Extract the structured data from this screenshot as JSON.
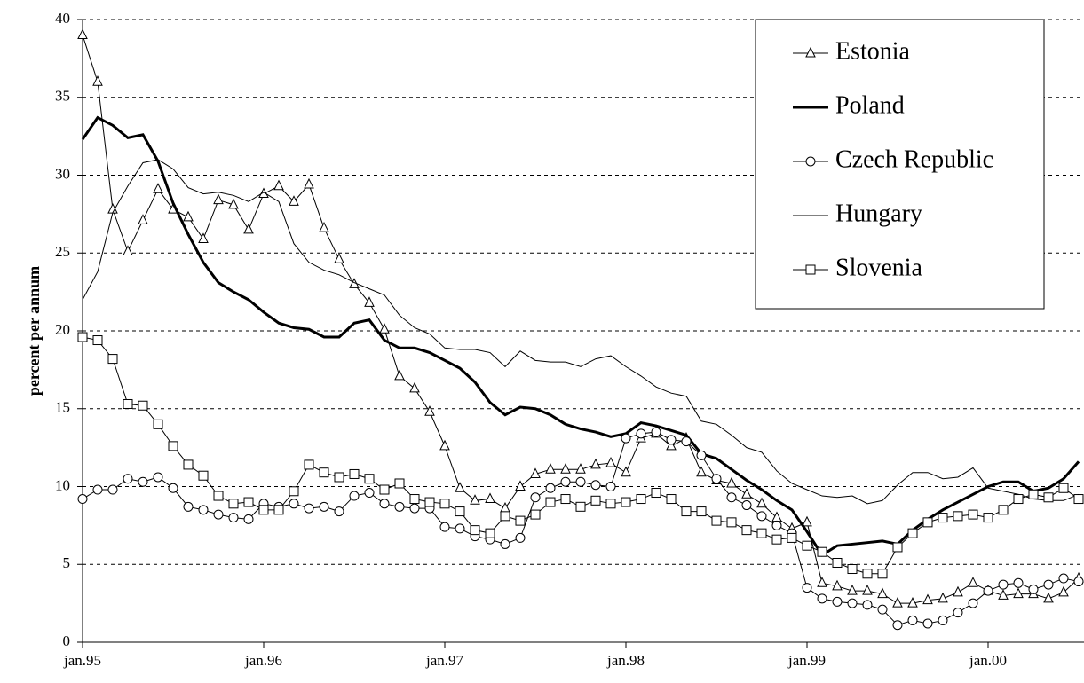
{
  "chart_data": {
    "type": "line",
    "y_label": "percent per annum",
    "categories": [
      "jan.95",
      null,
      null,
      null,
      null,
      null,
      null,
      null,
      null,
      null,
      null,
      null,
      "jan.96",
      null,
      null,
      null,
      null,
      null,
      null,
      null,
      null,
      null,
      null,
      null,
      "jan.97",
      null,
      null,
      null,
      null,
      null,
      null,
      null,
      null,
      null,
      null,
      null,
      "jan.98",
      null,
      null,
      null,
      null,
      null,
      null,
      null,
      null,
      null,
      null,
      null,
      "jan.99",
      null,
      null,
      null,
      null,
      null,
      null,
      null,
      null,
      null,
      null,
      null,
      "jan.00",
      null,
      null,
      null,
      null,
      null,
      null
    ],
    "ylim": [
      0,
      40
    ],
    "yticks": [
      0,
      5,
      10,
      15,
      20,
      25,
      30,
      35,
      40
    ],
    "grid": true,
    "legend": "top-right",
    "series": [
      {
        "name": "Estonia",
        "color": "#000000",
        "marker": "triangle",
        "line_width": 1,
        "values": [
          39,
          36,
          27.8,
          25.1,
          27.1,
          29.1,
          27.8,
          27.3,
          25.9,
          28.4,
          28.1,
          26.5,
          28.8,
          29.3,
          28.3,
          29.4,
          26.6,
          24.6,
          23,
          21.8,
          20.1,
          17.1,
          16.3,
          14.8,
          12.6,
          9.9,
          9.1,
          9.2,
          8.6,
          10,
          10.8,
          11.1,
          11.1,
          11.1,
          11.4,
          11.5,
          10.9,
          13.1,
          13.4,
          12.6,
          13.1,
          10.9,
          10.4,
          10.2,
          9.5,
          8.9,
          8,
          7.3,
          7.7,
          3.8,
          3.6,
          3.3,
          3.3,
          3.1,
          2.5,
          2.5,
          2.7,
          2.8,
          3.2,
          3.8,
          3.3,
          3,
          3.1,
          3.1,
          2.8,
          3.2,
          4.1
        ]
      },
      {
        "name": "Poland",
        "color": "#000000",
        "marker": "none",
        "line_width": 3,
        "values": [
          32.3,
          33.7,
          33.2,
          32.4,
          32.6,
          30.9,
          28.2,
          26.2,
          24.4,
          23.1,
          22.5,
          22,
          21.2,
          20.5,
          20.2,
          20.1,
          19.6,
          19.6,
          20.5,
          20.7,
          19.4,
          18.9,
          18.9,
          18.6,
          18.1,
          17.6,
          16.7,
          15.4,
          14.6,
          15.1,
          15,
          14.6,
          14,
          13.7,
          13.5,
          13.2,
          13.4,
          14.1,
          13.9,
          13.6,
          13.3,
          12.1,
          11.8,
          11.1,
          10.4,
          9.8,
          9.1,
          8.5,
          7.1,
          5.6,
          6.2,
          6.3,
          6.4,
          6.5,
          6.3,
          7.2,
          7.9,
          8.5,
          9,
          9.5,
          10,
          10.3,
          10.3,
          9.7,
          9.9,
          10.5,
          11.6
        ]
      },
      {
        "name": "Czech Republic",
        "color": "#000000",
        "marker": "circle",
        "line_width": 1,
        "values": [
          9.2,
          9.8,
          9.8,
          10.5,
          10.3,
          10.6,
          9.9,
          8.7,
          8.5,
          8.2,
          8,
          7.9,
          8.9,
          8.7,
          8.9,
          8.6,
          8.7,
          8.4,
          9.4,
          9.6,
          8.9,
          8.7,
          8.6,
          8.6,
          7.4,
          7.3,
          6.8,
          6.6,
          6.3,
          6.7,
          9.3,
          9.9,
          10.3,
          10.3,
          10.1,
          10,
          13.1,
          13.4,
          13.5,
          13,
          12.9,
          12,
          10.5,
          9.3,
          8.8,
          8.1,
          7.5,
          7,
          3.5,
          2.8,
          2.6,
          2.5,
          2.4,
          2.1,
          1.1,
          1.4,
          1.2,
          1.4,
          1.9,
          2.5,
          3.3,
          3.7,
          3.8,
          3.4,
          3.7,
          4.1,
          3.9
        ]
      },
      {
        "name": "Hungary",
        "color": "#000000",
        "marker": "none",
        "line_width": 1,
        "values": [
          22,
          23.8,
          27.6,
          29.3,
          30.8,
          31,
          30.4,
          29.2,
          28.8,
          28.9,
          28.7,
          28.3,
          28.9,
          28.3,
          25.6,
          24.4,
          23.9,
          23.6,
          23.1,
          22.7,
          22.3,
          21,
          20.2,
          19.8,
          18.9,
          18.8,
          18.8,
          18.6,
          17.7,
          18.7,
          18.1,
          18,
          18,
          17.7,
          18.2,
          18.4,
          17.7,
          17.1,
          16.4,
          16,
          15.8,
          14.2,
          14,
          13.3,
          12.5,
          12.2,
          11,
          10.2,
          9.8,
          9.4,
          9.3,
          9.4,
          8.9,
          9.1,
          10.1,
          10.9,
          10.9,
          10.5,
          10.6,
          11.2,
          9.9,
          9.7,
          9.5,
          9.2,
          9.1,
          9.1,
          9.5
        ]
      },
      {
        "name": "Slovenia",
        "color": "#000000",
        "marker": "square",
        "line_width": 1,
        "values": [
          19.6,
          19.4,
          18.2,
          15.3,
          15.2,
          14,
          12.6,
          11.4,
          10.7,
          9.4,
          8.9,
          9,
          8.5,
          8.5,
          9.7,
          11.4,
          10.9,
          10.6,
          10.8,
          10.5,
          9.8,
          10.2,
          9.2,
          9,
          8.9,
          8.4,
          7.2,
          7,
          8.1,
          7.8,
          8.2,
          9,
          9.2,
          8.7,
          9.1,
          8.9,
          9,
          9.2,
          9.6,
          9.2,
          8.4,
          8.4,
          7.8,
          7.7,
          7.2,
          7,
          6.6,
          6.7,
          6.2,
          5.8,
          5.1,
          4.7,
          4.4,
          4.4,
          6.1,
          7,
          7.7,
          8,
          8.1,
          8.2,
          8,
          8.5,
          9.2,
          9.5,
          9.3,
          9.9,
          9.2
        ]
      }
    ]
  }
}
